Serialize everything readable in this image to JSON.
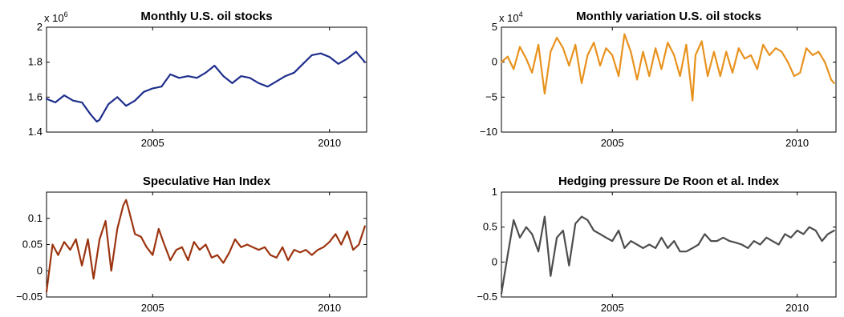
{
  "chart_data": [
    {
      "type": "line",
      "title": "Monthly U.S. oil stocks",
      "exponent_label": {
        "base": "x 10",
        "power": "6"
      },
      "xlim": [
        2002.0,
        2011.05
      ],
      "ylim": [
        1.4,
        2.0
      ],
      "x_ticks": [
        {
          "value": 2005,
          "label": "2005"
        },
        {
          "value": 2010,
          "label": "2010"
        }
      ],
      "y_ticks": [
        {
          "value": 1.4,
          "label": "1.4"
        },
        {
          "value": 1.6,
          "label": "1.6"
        },
        {
          "value": 1.8,
          "label": "1.8"
        },
        {
          "value": 2.0,
          "label": "2"
        }
      ],
      "color": "#1f2f8c",
      "x": [
        2002.0,
        2002.25,
        2002.5,
        2002.75,
        2003.0,
        2003.25,
        2003.42,
        2003.5,
        2003.58,
        2003.75,
        2004.0,
        2004.25,
        2004.5,
        2004.75,
        2005.0,
        2005.25,
        2005.5,
        2005.75,
        2006.0,
        2006.25,
        2006.5,
        2006.75,
        2007.0,
        2007.25,
        2007.5,
        2007.75,
        2008.0,
        2008.25,
        2008.5,
        2008.75,
        2009.0,
        2009.25,
        2009.5,
        2009.75,
        2010.0,
        2010.25,
        2010.5,
        2010.75,
        2011.0
      ],
      "values": [
        1.59,
        1.57,
        1.61,
        1.58,
        1.57,
        1.5,
        1.46,
        1.47,
        1.5,
        1.56,
        1.6,
        1.55,
        1.58,
        1.63,
        1.65,
        1.66,
        1.73,
        1.71,
        1.72,
        1.71,
        1.74,
        1.78,
        1.72,
        1.68,
        1.72,
        1.71,
        1.68,
        1.66,
        1.69,
        1.72,
        1.74,
        1.79,
        1.84,
        1.85,
        1.83,
        1.79,
        1.82,
        1.86,
        1.8
      ]
    },
    {
      "type": "line",
      "title": "Monthly variation U.S. oil stocks",
      "exponent_label": {
        "base": "x 10",
        "power": "4"
      },
      "xlim": [
        2002.0,
        2011.05
      ],
      "ylim": [
        -10,
        5
      ],
      "x_ticks": [
        {
          "value": 2005,
          "label": "2005"
        },
        {
          "value": 2010,
          "label": "2010"
        }
      ],
      "y_ticks": [
        {
          "value": -10,
          "label": "−10"
        },
        {
          "value": -5,
          "label": "−5"
        },
        {
          "value": 0,
          "label": "0"
        },
        {
          "value": 5,
          "label": "5"
        }
      ],
      "color": "#e8921e",
      "x": [
        2002.0,
        2002.17,
        2002.33,
        2002.5,
        2002.67,
        2002.83,
        2003.0,
        2003.17,
        2003.33,
        2003.5,
        2003.67,
        2003.83,
        2004.0,
        2004.17,
        2004.33,
        2004.5,
        2004.67,
        2004.83,
        2005.0,
        2005.17,
        2005.33,
        2005.5,
        2005.67,
        2005.83,
        2006.0,
        2006.17,
        2006.33,
        2006.5,
        2006.67,
        2006.83,
        2007.0,
        2007.17,
        2007.25,
        2007.42,
        2007.58,
        2007.75,
        2007.92,
        2008.08,
        2008.25,
        2008.42,
        2008.58,
        2008.75,
        2008.92,
        2009.08,
        2009.25,
        2009.42,
        2009.58,
        2009.75,
        2009.92,
        2010.08,
        2010.25,
        2010.42,
        2010.58,
        2010.75,
        2010.92,
        2011.0
      ],
      "values": [
        0.0,
        0.8,
        -1.0,
        2.2,
        0.5,
        -1.5,
        2.5,
        -4.5,
        1.5,
        3.5,
        2.0,
        -0.5,
        2.5,
        -3.0,
        1.0,
        2.8,
        -0.5,
        2.0,
        1.0,
        -2.0,
        4.0,
        1.5,
        -2.5,
        1.5,
        -2.0,
        2.0,
        -1.0,
        2.8,
        1.0,
        -2.0,
        2.5,
        -5.5,
        1.0,
        3.0,
        -2.0,
        1.5,
        -2.0,
        1.5,
        -1.5,
        2.0,
        0.5,
        1.0,
        -1.0,
        2.5,
        1.0,
        2.0,
        1.5,
        0.0,
        -2.0,
        -1.5,
        2.0,
        1.0,
        1.5,
        0.0,
        -2.5,
        -3.0
      ]
    },
    {
      "type": "line",
      "title": "Speculative Han Index",
      "xlim": [
        2002.0,
        2011.05
      ],
      "ylim": [
        -0.05,
        0.15
      ],
      "x_ticks": [
        {
          "value": 2005,
          "label": "2005"
        },
        {
          "value": 2010,
          "label": "2010"
        }
      ],
      "y_ticks": [
        {
          "value": -0.05,
          "label": "−0.05"
        },
        {
          "value": 0,
          "label": "0"
        },
        {
          "value": 0.05,
          "label": "0.05"
        },
        {
          "value": 0.1,
          "label": "0.1"
        }
      ],
      "color": "#9c3410",
      "x": [
        2002.0,
        2002.17,
        2002.33,
        2002.5,
        2002.67,
        2002.83,
        2003.0,
        2003.17,
        2003.33,
        2003.5,
        2003.67,
        2003.83,
        2004.0,
        2004.17,
        2004.25,
        2004.33,
        2004.5,
        2004.67,
        2004.83,
        2005.0,
        2005.17,
        2005.33,
        2005.5,
        2005.67,
        2005.83,
        2006.0,
        2006.17,
        2006.33,
        2006.5,
        2006.67,
        2006.83,
        2007.0,
        2007.17,
        2007.33,
        2007.5,
        2007.67,
        2007.83,
        2008.0,
        2008.17,
        2008.33,
        2008.5,
        2008.67,
        2008.83,
        2009.0,
        2009.17,
        2009.33,
        2009.5,
        2009.67,
        2009.83,
        2010.0,
        2010.17,
        2010.33,
        2010.5,
        2010.67,
        2010.83,
        2011.0
      ],
      "values": [
        -0.04,
        0.05,
        0.03,
        0.055,
        0.04,
        0.06,
        0.01,
        0.06,
        -0.015,
        0.06,
        0.095,
        0.0,
        0.08,
        0.125,
        0.135,
        0.115,
        0.07,
        0.065,
        0.045,
        0.03,
        0.08,
        0.05,
        0.02,
        0.04,
        0.045,
        0.02,
        0.055,
        0.04,
        0.05,
        0.025,
        0.03,
        0.015,
        0.035,
        0.06,
        0.045,
        0.05,
        0.045,
        0.04,
        0.045,
        0.03,
        0.025,
        0.045,
        0.02,
        0.04,
        0.035,
        0.04,
        0.03,
        0.04,
        0.045,
        0.055,
        0.07,
        0.05,
        0.075,
        0.04,
        0.05,
        0.085
      ]
    },
    {
      "type": "line",
      "title": "Hedging pressure De Roon et al. Index",
      "xlim": [
        2002.0,
        2011.05
      ],
      "ylim": [
        -0.5,
        1.0
      ],
      "x_ticks": [
        {
          "value": 2005,
          "label": "2005"
        },
        {
          "value": 2010,
          "label": "2010"
        }
      ],
      "y_ticks": [
        {
          "value": -0.5,
          "label": "−0.5"
        },
        {
          "value": 0,
          "label": "0"
        },
        {
          "value": 0.5,
          "label": "0.5"
        },
        {
          "value": 1.0,
          "label": "1"
        }
      ],
      "color": "#4d4d4d",
      "x": [
        2002.0,
        2002.17,
        2002.33,
        2002.5,
        2002.67,
        2002.83,
        2003.0,
        2003.17,
        2003.33,
        2003.5,
        2003.67,
        2003.83,
        2004.0,
        2004.17,
        2004.33,
        2004.5,
        2004.67,
        2004.83,
        2005.0,
        2005.17,
        2005.33,
        2005.5,
        2005.67,
        2005.83,
        2006.0,
        2006.17,
        2006.33,
        2006.5,
        2006.67,
        2006.83,
        2007.0,
        2007.17,
        2007.33,
        2007.5,
        2007.67,
        2007.83,
        2008.0,
        2008.17,
        2008.33,
        2008.5,
        2008.67,
        2008.83,
        2009.0,
        2009.17,
        2009.33,
        2009.5,
        2009.67,
        2009.83,
        2010.0,
        2010.17,
        2010.33,
        2010.5,
        2010.67,
        2010.83,
        2011.0
      ],
      "values": [
        -0.45,
        0.1,
        0.6,
        0.35,
        0.5,
        0.4,
        0.15,
        0.65,
        -0.2,
        0.35,
        0.45,
        -0.05,
        0.55,
        0.65,
        0.6,
        0.45,
        0.4,
        0.35,
        0.3,
        0.45,
        0.2,
        0.3,
        0.25,
        0.2,
        0.25,
        0.2,
        0.35,
        0.2,
        0.3,
        0.15,
        0.15,
        0.2,
        0.25,
        0.4,
        0.3,
        0.3,
        0.35,
        0.3,
        0.28,
        0.25,
        0.2,
        0.3,
        0.25,
        0.35,
        0.3,
        0.25,
        0.4,
        0.35,
        0.45,
        0.4,
        0.5,
        0.45,
        0.3,
        0.4,
        0.45
      ]
    }
  ]
}
